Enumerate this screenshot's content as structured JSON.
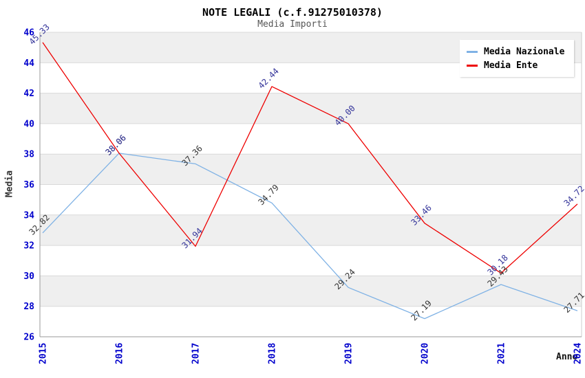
{
  "header": {
    "title": "NOTE LEGALI (c.f.91275010378)",
    "subtitle": "Media Importi"
  },
  "axes": {
    "ylabel": "Media",
    "xlabel": "Anno"
  },
  "legend": {
    "items": [
      {
        "label": "Media Nazionale",
        "color": "#7fb2e5"
      },
      {
        "label": "Media Ente",
        "color": "#ee0000"
      }
    ]
  },
  "chart_data": {
    "type": "line",
    "title": "NOTE LEGALI (c.f.91275010378)",
    "subtitle": "Media Importi",
    "xlabel": "Anno",
    "ylabel": "Media",
    "categories": [
      "2015",
      "2016",
      "2017",
      "2018",
      "2019",
      "2020",
      "2021",
      "2024"
    ],
    "series": [
      {
        "name": "Media Nazionale",
        "color": "#7fb2e5",
        "label_color": "#333333",
        "values": [
          32.82,
          38.06,
          37.36,
          34.79,
          29.24,
          27.19,
          29.43,
          27.71
        ]
      },
      {
        "name": "Media Ente",
        "color": "#ee0000",
        "label_color": "#333399",
        "values": [
          45.33,
          38.06,
          31.94,
          42.44,
          40.0,
          33.46,
          30.18,
          34.72
        ]
      }
    ],
    "ylim": [
      26,
      46
    ],
    "ytick_step": 2,
    "grid": "horizontal-bands-alternating",
    "band_color": "#efefef",
    "grid_line_color": "#d9d9d9",
    "tick_label_color": "#0000cc",
    "legend_position": "top-right",
    "data_label_format": "2-decimals",
    "data_label_rotation_deg": -45,
    "x_tick_rotation_deg": -90
  }
}
